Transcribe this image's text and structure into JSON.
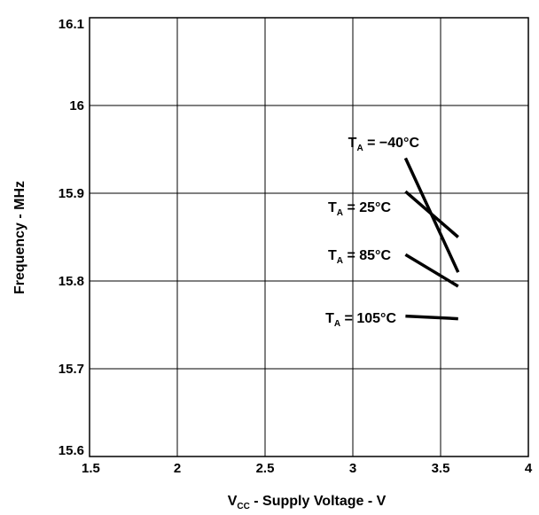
{
  "chart_data": {
    "type": "line",
    "xlabel": {
      "main": "V",
      "sub": "CC",
      "rest": " - Supply Voltage - V"
    },
    "ylabel": "Frequency - MHz",
    "xlim": [
      1.5,
      4
    ],
    "ylim": [
      15.6,
      16.1
    ],
    "x_ticks": [
      "1.5",
      "2",
      "2.5",
      "3",
      "3.5",
      "4"
    ],
    "y_ticks": [
      "15.6",
      "15.7",
      "15.8",
      "15.9",
      "16",
      "16.1"
    ],
    "grid": true,
    "series": [
      {
        "label_main": "T",
        "label_sub": "A",
        "label_rest": " = −40°C",
        "x": [
          3.3,
          3.6
        ],
        "y": [
          15.94,
          15.81
        ]
      },
      {
        "label_main": "T",
        "label_sub": "A",
        "label_rest": " = 25°C",
        "x": [
          3.3,
          3.6
        ],
        "y": [
          15.902,
          15.85
        ]
      },
      {
        "label_main": "T",
        "label_sub": "A",
        "label_rest": " = 85°C",
        "x": [
          3.3,
          3.6
        ],
        "y": [
          15.83,
          15.794
        ]
      },
      {
        "label_main": "T",
        "label_sub": "A",
        "label_rest": " = 105°C",
        "x": [
          3.3,
          3.6
        ],
        "y": [
          15.76,
          15.757
        ]
      }
    ]
  }
}
